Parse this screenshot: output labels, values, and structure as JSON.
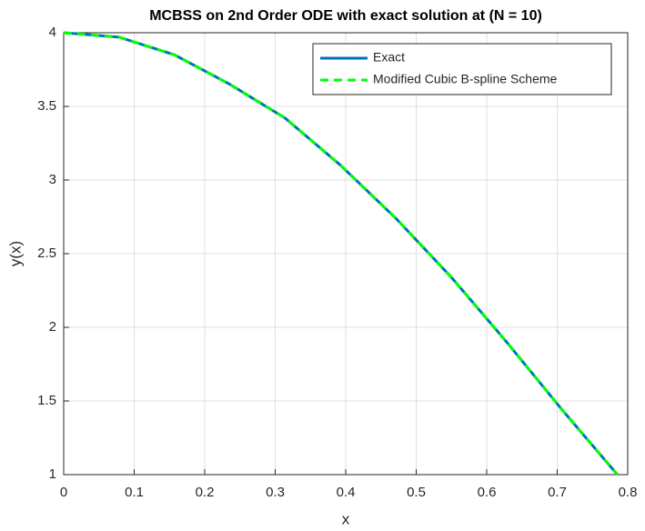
{
  "chart_data": {
    "type": "line",
    "title": "MCBSS on 2nd Order ODE with exact solution at (N = 10)",
    "xlabel": "x",
    "ylabel": "y(x)",
    "x": [
      0,
      0.0785,
      0.1571,
      0.2356,
      0.3142,
      0.3927,
      0.4712,
      0.5498,
      0.6283,
      0.7069,
      0.7854
    ],
    "series": [
      {
        "name": "Exact",
        "color": "#0072bd",
        "style": "solid",
        "values": [
          4,
          3.97,
          3.85,
          3.65,
          3.42,
          3.1,
          2.74,
          2.34,
          1.9,
          1.44,
          1
        ]
      },
      {
        "name": "Modified Cubic B-spline Scheme",
        "color": "#00ff00",
        "style": "dashed",
        "values": [
          4,
          3.97,
          3.85,
          3.65,
          3.42,
          3.1,
          2.74,
          2.34,
          1.9,
          1.44,
          1
        ]
      }
    ],
    "xlim": [
      0,
      0.8
    ],
    "ylim": [
      1,
      4
    ],
    "xticks": [
      0,
      0.1,
      0.2,
      0.3,
      0.4,
      0.5,
      0.6,
      0.7,
      0.8
    ],
    "yticks": [
      1,
      1.5,
      2,
      2.5,
      3,
      3.5,
      4
    ],
    "grid": true,
    "legend": "northeast"
  }
}
